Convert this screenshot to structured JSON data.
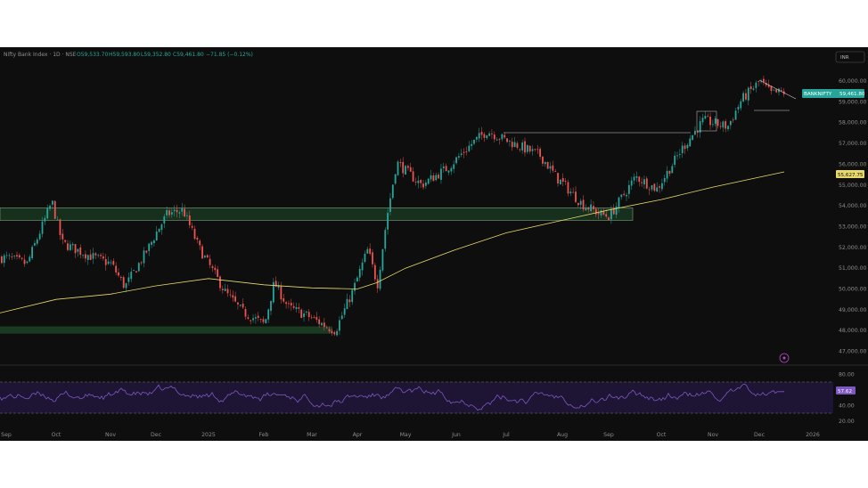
{
  "header": {
    "title": "Nifty Bank Index · 1D · NSE",
    "open": "O59,533.70",
    "high": "H59,593.80",
    "low": "L59,352.80",
    "close": "C59,461.80",
    "change": "−71.85 (−0.12%)"
  },
  "currency_badge": "INR",
  "price_tag": {
    "symbol": "BANKNIFTY",
    "value": "59,461.80"
  },
  "ma_tag": {
    "value": "55,627.75"
  },
  "rsi_tag": {
    "value": "57.62"
  },
  "colors": {
    "background": "#0e0e0e",
    "up": "#26a69a",
    "down": "#ef5350",
    "moving_average": "#e8d96a",
    "rsi": "#7e57c2",
    "zone": "#1f4a2a"
  },
  "chart_data": [
    {
      "type": "candlestick",
      "title": "Nifty Bank Index · 1D · NSE",
      "y_ticks": [
        "47,000.00",
        "48,000.00",
        "49,000.00",
        "50,000.00",
        "51,000.00",
        "52,000.00",
        "53,000.00",
        "54,000.00",
        "55,000.00",
        "56,000.00",
        "57,000.00",
        "58,000.00",
        "59,000.00",
        "60,000.00"
      ],
      "ylim": [
        46800,
        60800
      ],
      "x_ticks": [
        "Sep",
        "Oct",
        "Nov",
        "Dec",
        "2025",
        "Feb",
        "Mar",
        "Apr",
        "May",
        "Jun",
        "Jul",
        "Aug",
        "Sep",
        "Oct",
        "Nov",
        "Dec",
        "2026"
      ],
      "x_range": [
        "Sep 2024",
        "Jan 2026"
      ],
      "last_close": 59461.8,
      "moving_average": {
        "anchors": [
          {
            "date": "Sep",
            "value": 48850
          },
          {
            "date": "Oct",
            "value": 49500
          },
          {
            "date": "Nov",
            "value": 49750
          },
          {
            "date": "Dec",
            "value": 50150
          },
          {
            "date": "2025",
            "value": 50500
          },
          {
            "date": "Feb",
            "value": 50200
          },
          {
            "date": "Mar",
            "value": 50050
          },
          {
            "date": "Apr",
            "value": 50000
          },
          {
            "date": "Apr",
            "value": 50300
          },
          {
            "date": "May",
            "value": 51000
          },
          {
            "date": "Jun",
            "value": 51900
          },
          {
            "date": "Jul",
            "value": 52700
          },
          {
            "date": "Aug",
            "value": 53300
          },
          {
            "date": "Sep",
            "value": 53800
          },
          {
            "date": "Oct",
            "value": 54300
          },
          {
            "date": "Nov",
            "value": 54900
          },
          {
            "date": "Dec",
            "value": 55630
          }
        ]
      },
      "zones": [
        {
          "from": "Sep",
          "to": "Sep",
          "y_low": 53300,
          "y_high": 53900
        },
        {
          "from": "Sep",
          "to": "Apr",
          "y_low": 47850,
          "y_high": 48200
        }
      ],
      "grid": false,
      "legend": "none"
    },
    {
      "type": "line",
      "title": "RSI",
      "y_ticks": [
        "20.00",
        "40.00",
        "60.00",
        "80.00"
      ],
      "ylim": [
        20,
        85
      ],
      "band": [
        30,
        70
      ],
      "last_value": 57.62
    }
  ]
}
